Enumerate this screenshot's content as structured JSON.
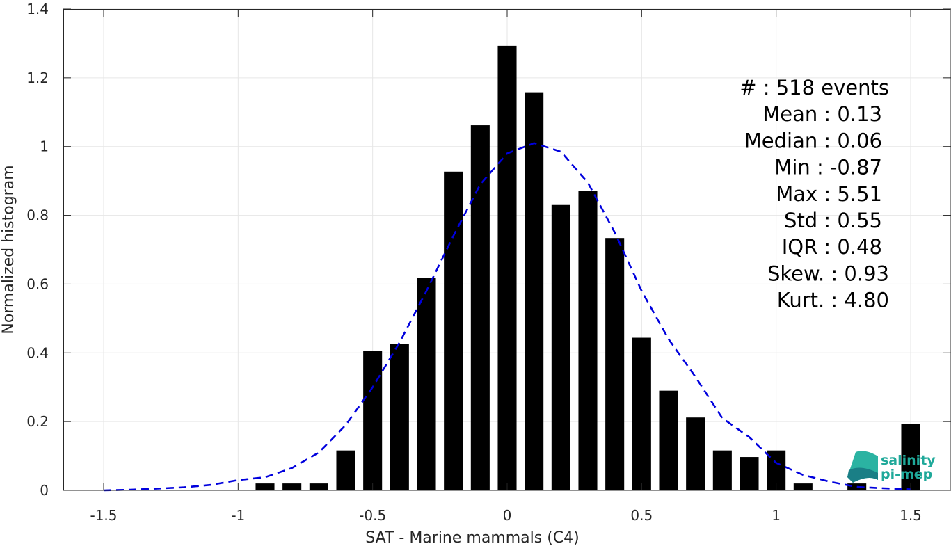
{
  "chart_data": {
    "type": "bar",
    "xlabel": "SAT - Marine mammals (C4)",
    "ylabel": "Normalized histogram",
    "xlim": [
      -1.65,
      1.65
    ],
    "ylim": [
      0,
      1.4
    ],
    "xticks": [
      -1.5,
      -1,
      -0.5,
      0,
      0.5,
      1,
      1.5
    ],
    "xtick_labels": [
      "-1.5",
      "-1",
      "-0.5",
      "0",
      "0.5",
      "1",
      "1.5"
    ],
    "yticks": [
      0,
      0.2,
      0.4,
      0.6,
      0.8,
      1,
      1.2,
      1.4
    ],
    "ytick_labels": [
      "0",
      "0.2",
      "0.4",
      "0.6",
      "0.8",
      "1",
      "1.2",
      "1.4"
    ],
    "grid": true,
    "bar_width": 0.07,
    "bars": {
      "x": [
        -0.9,
        -0.8,
        -0.7,
        -0.6,
        -0.5,
        -0.4,
        -0.3,
        -0.2,
        -0.1,
        0.0,
        0.1,
        0.2,
        0.3,
        0.4,
        0.5,
        0.6,
        0.7,
        0.8,
        0.9,
        1.0,
        1.1,
        1.3,
        1.5
      ],
      "values": [
        0.02,
        0.02,
        0.02,
        0.116,
        0.405,
        0.425,
        0.618,
        0.927,
        1.062,
        1.293,
        1.158,
        0.83,
        0.87,
        0.734,
        0.444,
        0.29,
        0.212,
        0.116,
        0.097,
        0.116,
        0.02,
        0.02,
        0.193
      ],
      "color": "#000000"
    },
    "fit_curve": {
      "style": "dashed",
      "color": "#0000dd",
      "x": [
        -1.5,
        -1.4,
        -1.3,
        -1.2,
        -1.1,
        -1.0,
        -0.9,
        -0.8,
        -0.7,
        -0.6,
        -0.5,
        -0.4,
        -0.3,
        -0.2,
        -0.1,
        0.0,
        0.1,
        0.2,
        0.3,
        0.4,
        0.5,
        0.6,
        0.7,
        0.8,
        0.9,
        1.0,
        1.1,
        1.2,
        1.3,
        1.4,
        1.5
      ],
      "values": [
        0.0,
        0.002,
        0.005,
        0.009,
        0.016,
        0.03,
        0.038,
        0.065,
        0.11,
        0.19,
        0.3,
        0.43,
        0.58,
        0.74,
        0.89,
        0.98,
        1.01,
        0.985,
        0.895,
        0.75,
        0.58,
        0.44,
        0.33,
        0.21,
        0.155,
        0.08,
        0.045,
        0.025,
        0.01,
        0.006,
        0.003
      ]
    },
    "stats": [
      "#  : 518 events",
      "Mean : 0.13",
      "Median : 0.06",
      "Min : -0.87",
      "Max : 5.51",
      "Std : 0.55",
      "IQR : 0.48",
      "Skew. : 0.93",
      "Kurt. : 4.80"
    ]
  },
  "logo": {
    "line1": "salinity",
    "line2": "pi-mep"
  }
}
